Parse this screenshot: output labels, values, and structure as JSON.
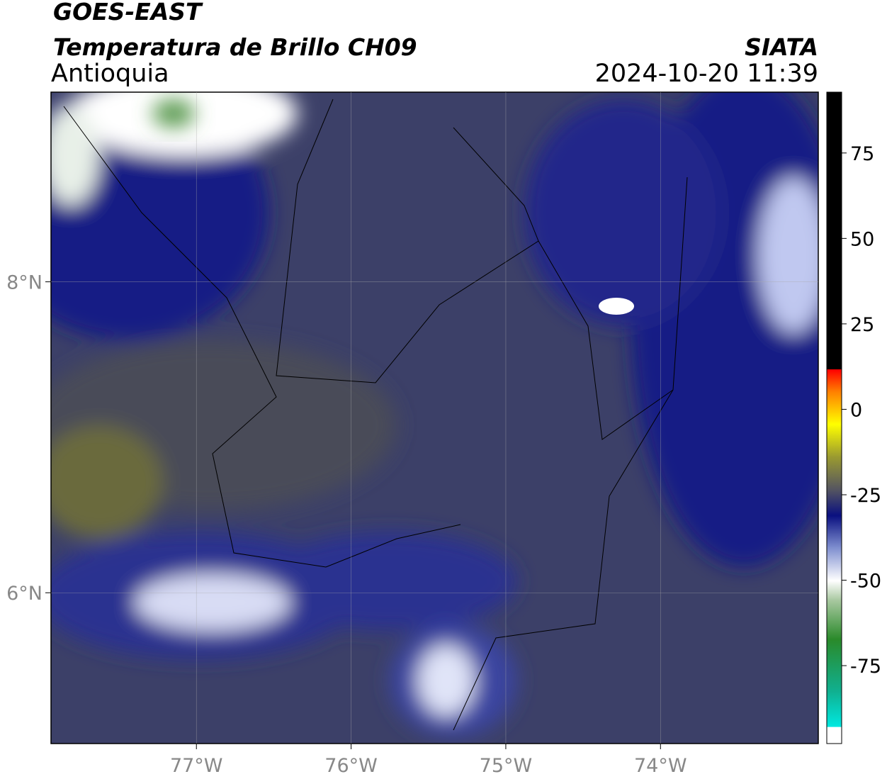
{
  "header": {
    "title": "GOES-EAST",
    "subtitle": "Temperatura de Brillo CH09",
    "region": "Antioquia",
    "source": "SIATA",
    "datetime": "2024-10-20 11:39"
  },
  "map": {
    "xlim": [
      -77.94,
      -72.98
    ],
    "ylim": [
      5.03,
      9.22
    ],
    "xticks": [
      {
        "value": -77,
        "label": "77°W"
      },
      {
        "value": -76,
        "label": "76°W"
      },
      {
        "value": -75,
        "label": "75°W"
      },
      {
        "value": -74,
        "label": "74°W"
      }
    ],
    "yticks": [
      {
        "value": 8,
        "label": "8°N"
      },
      {
        "value": 6,
        "label": "6°N"
      }
    ]
  },
  "colorbar": {
    "ylim": [
      -97.8,
      92.8
    ],
    "yticks": [
      75,
      50,
      25,
      0,
      -25,
      -50,
      -75
    ]
  }
}
